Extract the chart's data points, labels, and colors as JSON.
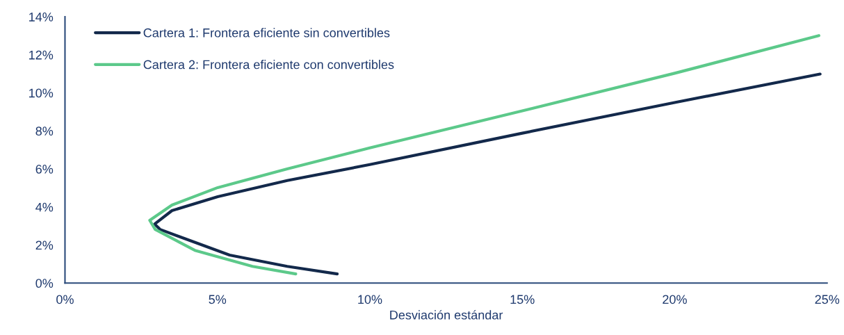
{
  "chart_data": {
    "type": "line",
    "xlabel": "Desviación estándar",
    "xlim": [
      0,
      25
    ],
    "xticks": [
      {
        "value": 0,
        "label": "0%"
      },
      {
        "value": 5,
        "label": "5%"
      },
      {
        "value": 10,
        "label": "10%"
      },
      {
        "value": 15,
        "label": "15%"
      },
      {
        "value": 20,
        "label": "20%"
      },
      {
        "value": 25,
        "label": "25%"
      }
    ],
    "ylim": [
      0,
      14
    ],
    "yticks": [
      {
        "value": 0,
        "label": "0%"
      },
      {
        "value": 2,
        "label": "2%"
      },
      {
        "value": 4,
        "label": "4%"
      },
      {
        "value": 6,
        "label": "6%"
      },
      {
        "value": 8,
        "label": "8%"
      },
      {
        "value": 10,
        "label": "10%"
      },
      {
        "value": 12,
        "label": "12%"
      },
      {
        "value": 14,
        "label": "14%"
      }
    ],
    "grid": false,
    "legend": "top left",
    "marker": "none",
    "line_style": "solid",
    "series": [
      {
        "name": "Cartera 1: Frontera eficiente sin convertibles",
        "color": "#13294b",
        "x": [
          8.93,
          7.29,
          5.4,
          3.74,
          3.12,
          2.94,
          3.51,
          5.01,
          7.29,
          10,
          15,
          20,
          24.77
        ],
        "values": [
          0.48,
          0.88,
          1.47,
          2.45,
          2.82,
          3.1,
          3.81,
          4.54,
          5.39,
          6.23,
          7.88,
          9.49,
          10.99
        ]
      },
      {
        "name": "Cartera 2: Frontera eficiente con convertibles",
        "color": "#5cc98a",
        "x": [
          7.57,
          6.15,
          4.26,
          2.96,
          2.78,
          3.51,
          5.01,
          7.29,
          10,
          15,
          20,
          24.73
        ],
        "values": [
          0.48,
          0.88,
          1.72,
          2.82,
          3.3,
          4.1,
          5.02,
          6.0,
          7.11,
          9.05,
          11.03,
          13.01
        ]
      }
    ]
  }
}
